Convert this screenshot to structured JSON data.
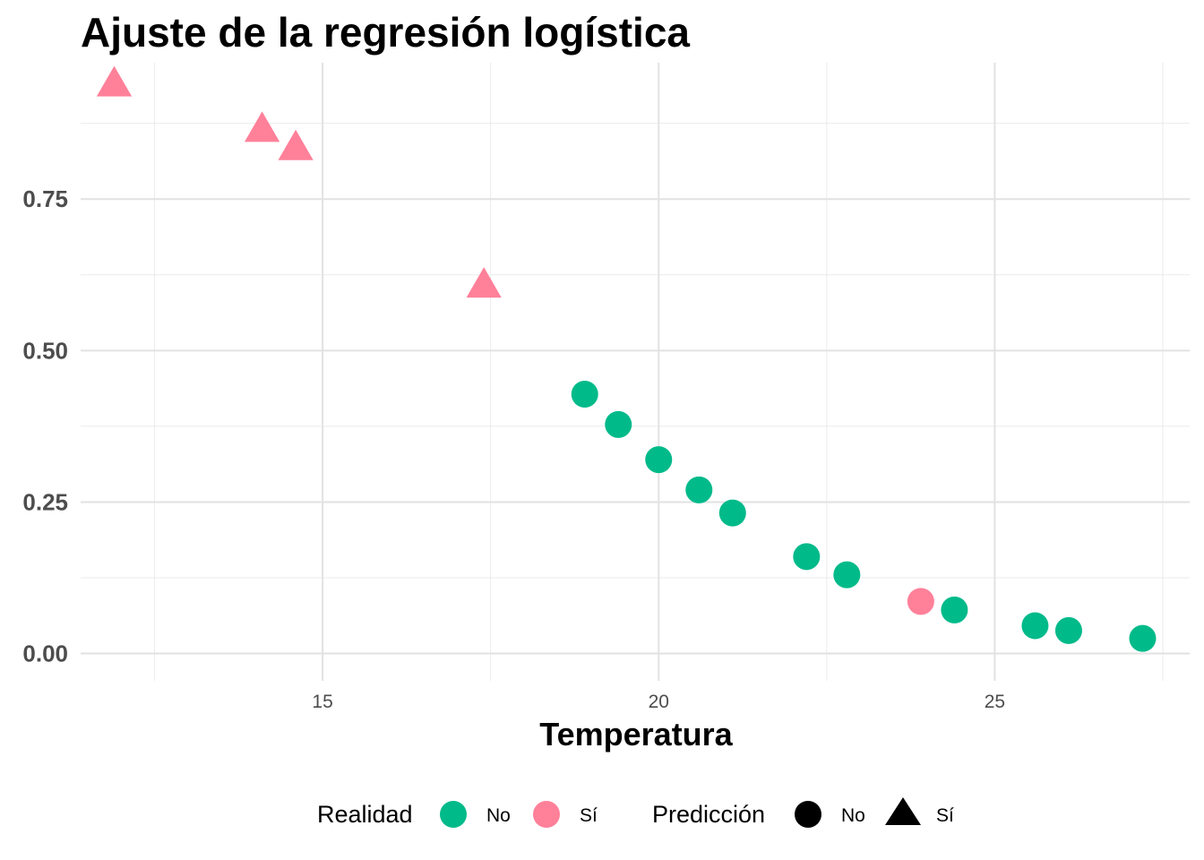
{
  "chart_data": {
    "type": "scatter",
    "title": "Ajuste de la regresión logística",
    "xlabel": "Temperatura",
    "ylabel": "",
    "xlim": [
      11.4,
      27.9
    ],
    "ylim": [
      -0.045,
      0.975
    ],
    "x_ticks": [
      15,
      20,
      25
    ],
    "x_tick_labels": [
      "15",
      "20",
      "25"
    ],
    "y_ticks": [
      0,
      0.25,
      0.5,
      0.75
    ],
    "y_tick_labels": [
      "0.00",
      "0.25",
      "0.50",
      "0.75"
    ],
    "grid": true,
    "legend_position": "bottom",
    "legend": {
      "color_title": "Realidad",
      "color_entries": [
        {
          "label": "No",
          "color": "#00BA8A"
        },
        {
          "label": "Sí",
          "color": "#FF8099"
        }
      ],
      "shape_title": "Predicción",
      "shape_entries": [
        {
          "label": "No",
          "shape": "circle"
        },
        {
          "label": "Sí",
          "shape": "triangle"
        }
      ]
    },
    "points": [
      {
        "x": 11.9,
        "y": 0.94,
        "realidad": "Sí",
        "prediccion": "Sí"
      },
      {
        "x": 14.1,
        "y": 0.865,
        "realidad": "Sí",
        "prediccion": "Sí"
      },
      {
        "x": 14.6,
        "y": 0.835,
        "realidad": "Sí",
        "prediccion": "Sí"
      },
      {
        "x": 17.4,
        "y": 0.608,
        "realidad": "Sí",
        "prediccion": "Sí"
      },
      {
        "x": 18.9,
        "y": 0.428,
        "realidad": "No",
        "prediccion": "No"
      },
      {
        "x": 19.4,
        "y": 0.378,
        "realidad": "No",
        "prediccion": "No"
      },
      {
        "x": 20.0,
        "y": 0.32,
        "realidad": "No",
        "prediccion": "No"
      },
      {
        "x": 20.6,
        "y": 0.27,
        "realidad": "No",
        "prediccion": "No"
      },
      {
        "x": 21.1,
        "y": 0.232,
        "realidad": "No",
        "prediccion": "No"
      },
      {
        "x": 22.2,
        "y": 0.16,
        "realidad": "No",
        "prediccion": "No"
      },
      {
        "x": 22.8,
        "y": 0.13,
        "realidad": "No",
        "prediccion": "No"
      },
      {
        "x": 23.9,
        "y": 0.086,
        "realidad": "Sí",
        "prediccion": "No"
      },
      {
        "x": 24.4,
        "y": 0.072,
        "realidad": "No",
        "prediccion": "No"
      },
      {
        "x": 25.6,
        "y": 0.046,
        "realidad": "No",
        "prediccion": "No"
      },
      {
        "x": 26.1,
        "y": 0.038,
        "realidad": "No",
        "prediccion": "No"
      },
      {
        "x": 27.2,
        "y": 0.025,
        "realidad": "No",
        "prediccion": "No"
      }
    ]
  }
}
